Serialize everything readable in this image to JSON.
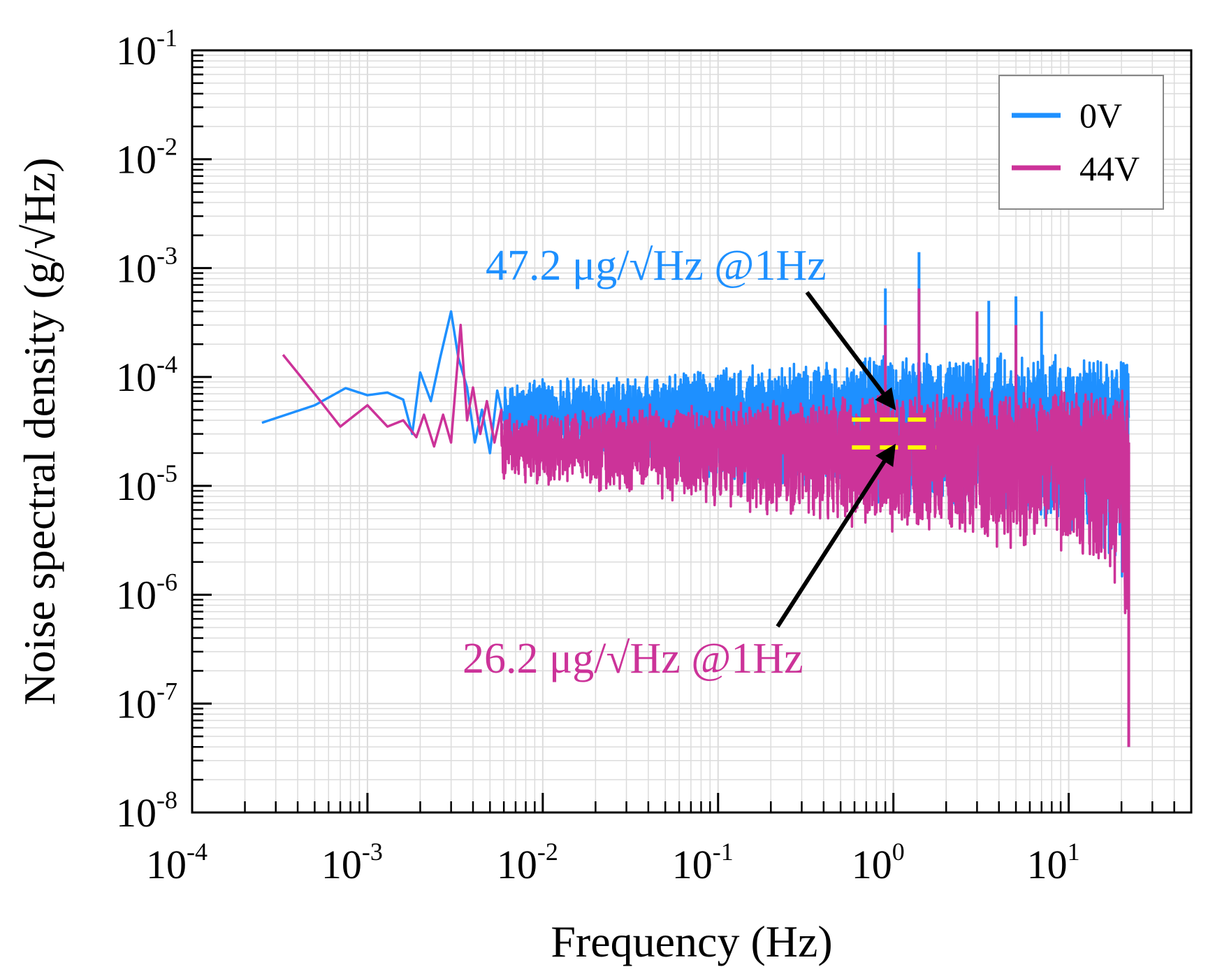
{
  "chart_data": {
    "type": "line",
    "scale": "log-log",
    "xlabel": "Frequency (Hz)",
    "ylabel": "Noise spectral density (g/√Hz)",
    "xlim": [
      0.0001,
      50
    ],
    "ylim": [
      1e-08,
      0.1
    ],
    "grid": true,
    "x_ticks": [
      {
        "value": 0.0001,
        "base": "10",
        "exp": "-4"
      },
      {
        "value": 0.001,
        "base": "10",
        "exp": "-3"
      },
      {
        "value": 0.01,
        "base": "10",
        "exp": "-2"
      },
      {
        "value": 0.1,
        "base": "10",
        "exp": "-1"
      },
      {
        "value": 1,
        "base": "10",
        "exp": "0"
      },
      {
        "value": 10,
        "base": "10",
        "exp": "1"
      }
    ],
    "y_ticks": [
      {
        "value": 1e-08,
        "base": "10",
        "exp": "-8"
      },
      {
        "value": 1e-07,
        "base": "10",
        "exp": "-7"
      },
      {
        "value": 1e-06,
        "base": "10",
        "exp": "-6"
      },
      {
        "value": 1e-05,
        "base": "10",
        "exp": "-5"
      },
      {
        "value": 0.0001,
        "base": "10",
        "exp": "-4"
      },
      {
        "value": 0.001,
        "base": "10",
        "exp": "-3"
      },
      {
        "value": 0.01,
        "base": "10",
        "exp": "-2"
      },
      {
        "value": 0.1,
        "base": "10",
        "exp": "-1"
      }
    ],
    "legend_position": "top-right",
    "series": [
      {
        "name": "0V",
        "color": "#1e90ff",
        "median_level": 4.72e-05,
        "end_frequency": 22,
        "x": [
          0.00025,
          0.0005,
          0.00075,
          0.001,
          0.0013,
          0.0016,
          0.0018,
          0.002,
          0.0023,
          0.0026,
          0.003,
          0.0033,
          0.0037,
          0.0041,
          0.0045,
          0.005,
          0.0055,
          0.006
        ],
        "values": [
          3.8e-05,
          5.5e-05,
          7.9e-05,
          6.8e-05,
          7.2e-05,
          6.2e-05,
          3e-05,
          0.00011,
          6e-05,
          0.00015,
          0.0004,
          0.00015,
          8e-05,
          2.5e-05,
          5e-05,
          2e-05,
          7.5e-05,
          4e-05
        ],
        "peaks": [
          {
            "x": 0.9,
            "y": 0.00065
          },
          {
            "x": 1.4,
            "y": 0.0014
          },
          {
            "x": 3.5,
            "y": 0.0005
          },
          {
            "x": 5,
            "y": 0.00055
          },
          {
            "x": 7,
            "y": 0.0004
          }
        ]
      },
      {
        "name": "44V",
        "color": "#cc3399",
        "median_level": 2.62e-05,
        "end_frequency": 22,
        "x": [
          0.00033,
          0.0005,
          0.0007,
          0.001,
          0.0013,
          0.0016,
          0.0019,
          0.0021,
          0.0024,
          0.0027,
          0.003,
          0.0034,
          0.0037,
          0.004,
          0.0044,
          0.0048,
          0.0053,
          0.0058
        ],
        "values": [
          0.00016,
          7e-05,
          3.5e-05,
          5.5e-05,
          3.5e-05,
          4e-05,
          2.8e-05,
          4.5e-05,
          2.3e-05,
          4.5e-05,
          2.5e-05,
          0.0003,
          4e-05,
          8e-05,
          3e-05,
          6e-05,
          2.5e-05,
          5e-05
        ],
        "peaks": [
          {
            "x": 1.4,
            "y": 0.00065
          },
          {
            "x": 0.9,
            "y": 0.0003
          },
          {
            "x": 3,
            "y": 0.0004
          },
          {
            "x": 5,
            "y": 0.0003
          }
        ]
      }
    ],
    "annotations": [
      {
        "text": "47.2 μg/√Hz @1Hz",
        "color": "#1e90ff",
        "target_x": 1,
        "target_y": 4.72e-05
      },
      {
        "text": "26.2 μg/√Hz @1Hz",
        "color": "#cc3399",
        "target_x": 1,
        "target_y": 2.62e-05
      }
    ],
    "highlight_color": "#ffff00"
  }
}
